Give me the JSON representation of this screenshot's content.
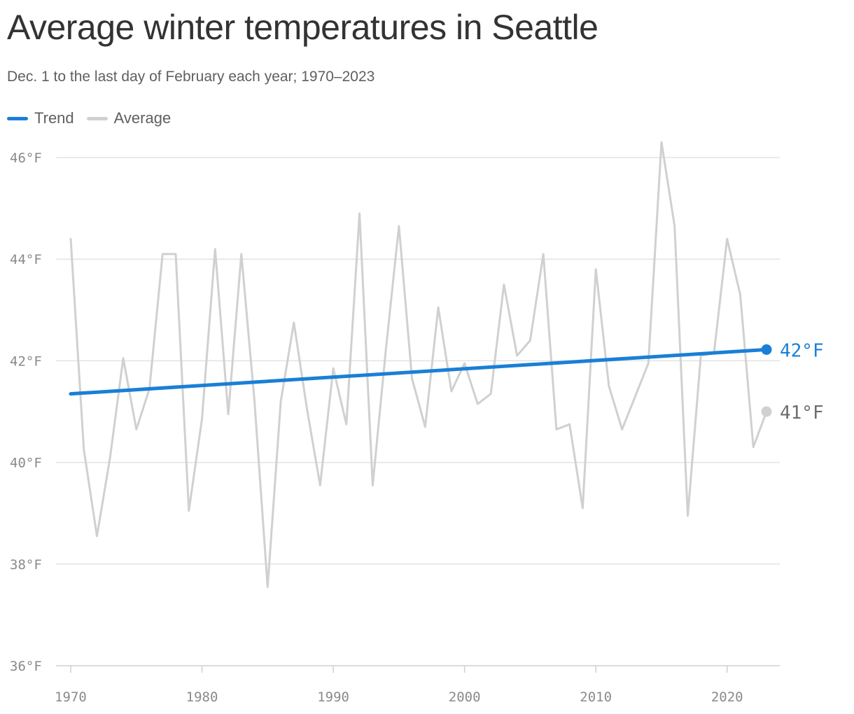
{
  "chart_data": {
    "type": "line",
    "title": "Average winter temperatures in Seattle",
    "subtitle": "Dec. 1 to the last day of February each year; 1970–2023",
    "xlabel": "",
    "ylabel": "",
    "xlim": [
      1970,
      2023
    ],
    "ylim": [
      36,
      46
    ],
    "x_ticks": [
      "1970",
      "1980",
      "1990",
      "2000",
      "2010",
      "2020"
    ],
    "y_ticks": [
      "36°F",
      "38°F",
      "40°F",
      "42°F",
      "44°F",
      "46°F"
    ],
    "grid": true,
    "legend_placement": "top-left",
    "series": [
      {
        "name": "Trend",
        "color": "#1a7fd6",
        "x": [
          1970,
          2023
        ],
        "values": [
          41.35,
          42.22
        ],
        "end_label": "42°F"
      },
      {
        "name": "Average",
        "color": "#d0d0d0",
        "x": [
          1970,
          1971,
          1972,
          1973,
          1974,
          1975,
          1976,
          1977,
          1978,
          1979,
          1980,
          1981,
          1982,
          1983,
          1984,
          1985,
          1986,
          1987,
          1988,
          1989,
          1990,
          1991,
          1992,
          1993,
          1994,
          1995,
          1996,
          1997,
          1998,
          1999,
          2000,
          2001,
          2002,
          2003,
          2004,
          2005,
          2006,
          2007,
          2008,
          2009,
          2010,
          2011,
          2012,
          2013,
          2014,
          2015,
          2016,
          2017,
          2018,
          2019,
          2020,
          2021,
          2022,
          2023
        ],
        "values": [
          44.4,
          40.25,
          38.55,
          40.1,
          42.05,
          40.65,
          41.45,
          44.1,
          44.1,
          39.05,
          40.85,
          44.2,
          40.95,
          44.1,
          41.2,
          37.55,
          41.2,
          42.75,
          41.05,
          39.55,
          41.85,
          40.75,
          44.9,
          39.55,
          42.2,
          44.65,
          41.65,
          40.7,
          43.05,
          41.4,
          41.95,
          41.15,
          41.35,
          43.5,
          42.1,
          42.4,
          44.1,
          40.65,
          40.75,
          39.1,
          43.8,
          41.5,
          40.65,
          41.3,
          41.95,
          46.3,
          44.65,
          38.95,
          42.1,
          42.15,
          44.4,
          43.3,
          40.3,
          41.0
        ],
        "end_label": "41°F"
      }
    ]
  }
}
